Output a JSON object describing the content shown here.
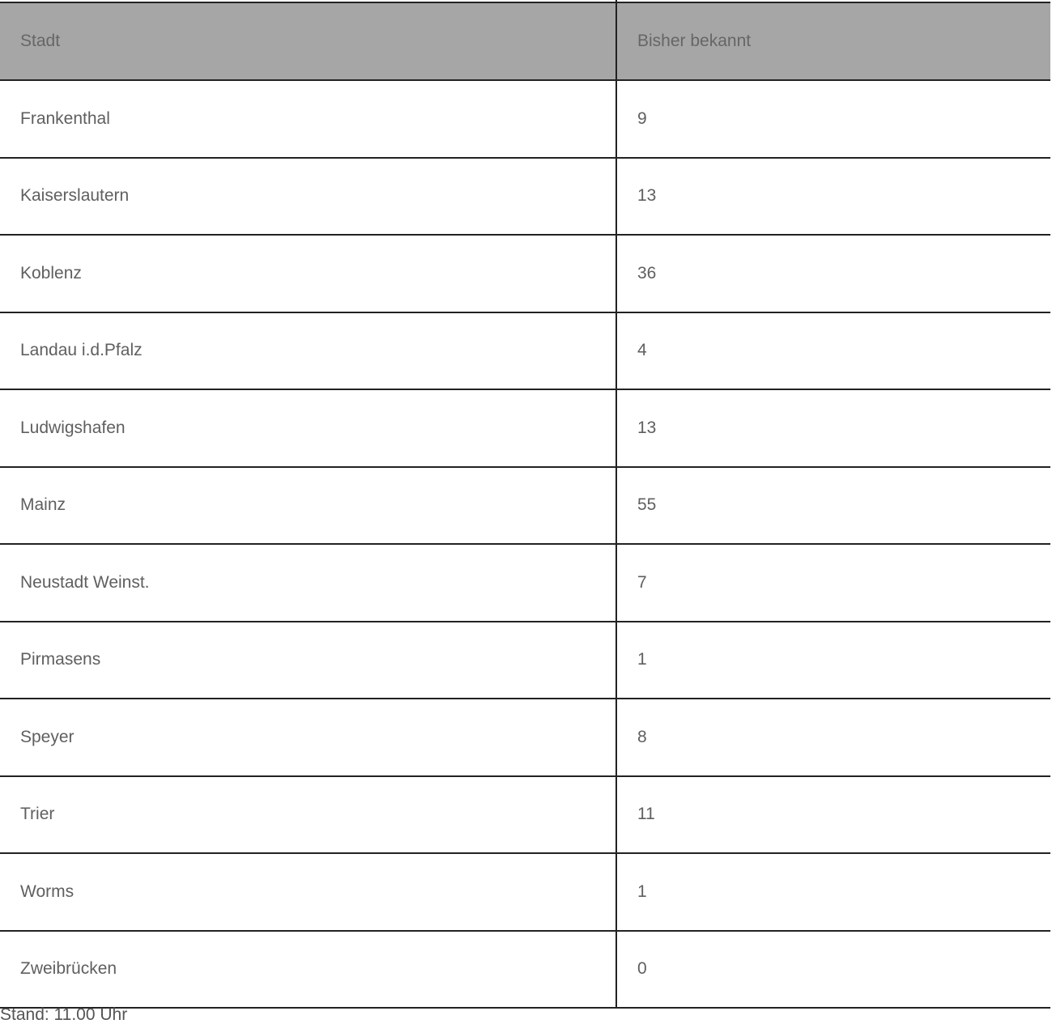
{
  "table": {
    "headers": [
      "Stadt",
      "Bisher bekannt"
    ],
    "rows": [
      [
        "Frankenthal",
        "9"
      ],
      [
        "Kaiserslautern",
        "13"
      ],
      [
        "Koblenz",
        "36"
      ],
      [
        "Landau i.d.Pfalz",
        "4"
      ],
      [
        "Ludwigshafen",
        "13"
      ],
      [
        "Mainz",
        "55"
      ],
      [
        "Neustadt Weinst.",
        "7"
      ],
      [
        "Pirmasens",
        "1"
      ],
      [
        "Speyer",
        "8"
      ],
      [
        "Trier",
        "11"
      ],
      [
        "Worms",
        "1"
      ],
      [
        "Zweibrücken",
        "0"
      ]
    ]
  },
  "footer": "Stand: 11.00 Uhr",
  "colors": {
    "header_bg": "#a6a6a6",
    "text": "#5f5f5f",
    "border": "#222222"
  }
}
